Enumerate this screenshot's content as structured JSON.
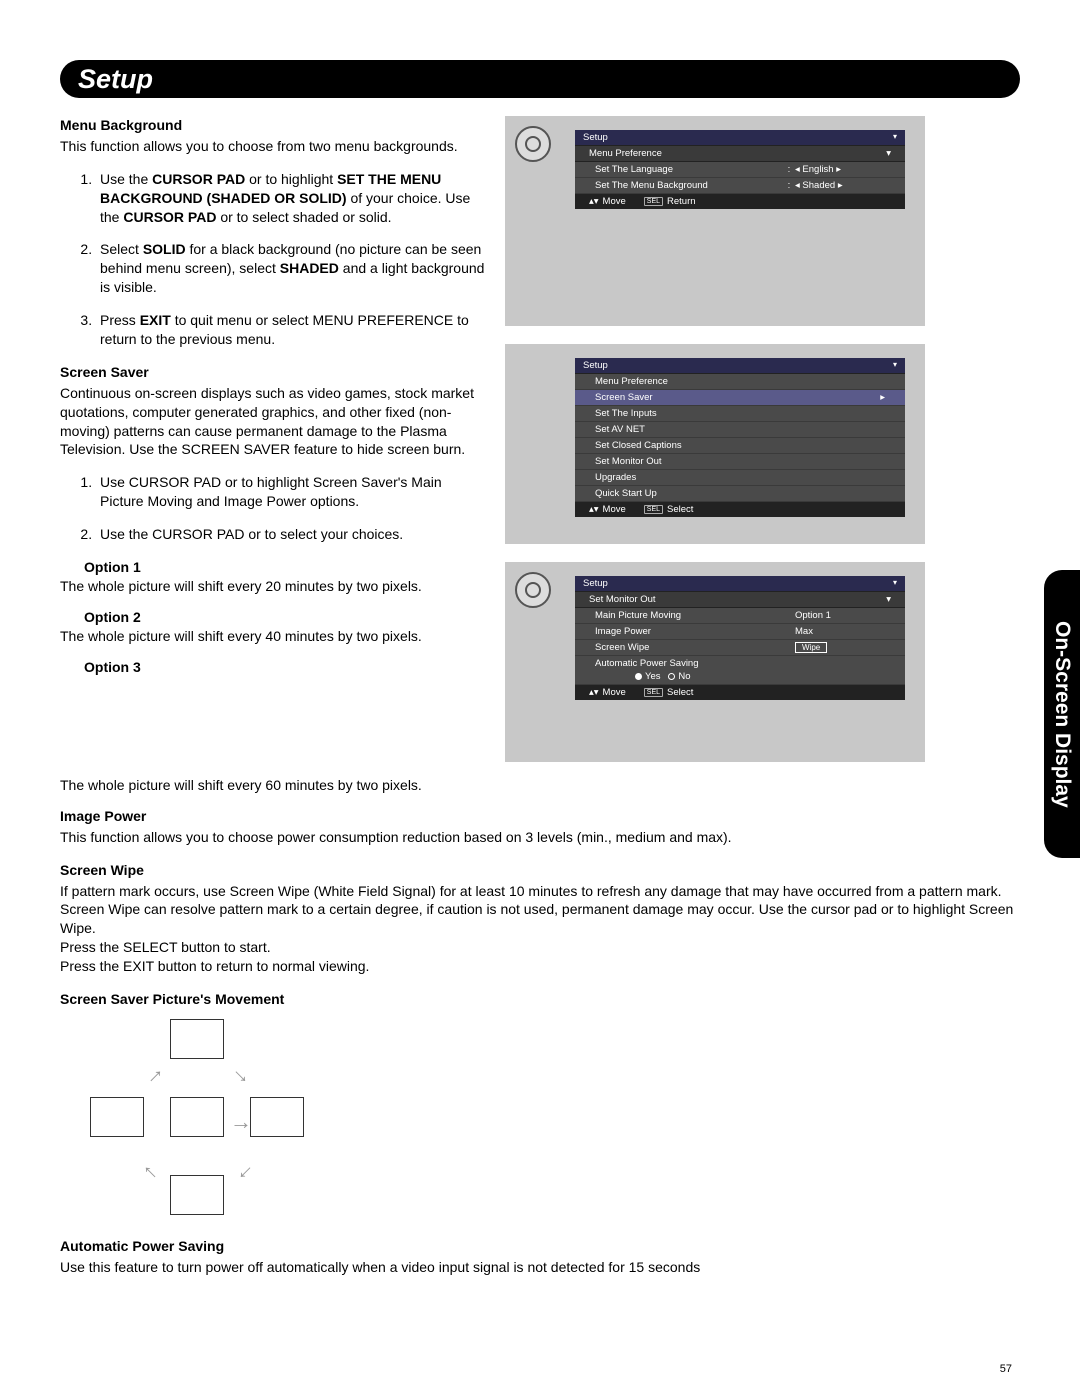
{
  "page_title": "Setup",
  "side_tab": "On-Screen Display",
  "page_number": "57",
  "menu_bg": {
    "title": "Menu Background",
    "intro": "This function allows you to choose from two menu backgrounds.",
    "steps": [
      {
        "pre": "Use the ",
        "b1": "CURSOR PAD",
        "mid": "     or     to highlight ",
        "b2": "SET THE MENU BACKGROUND (SHADED OR SOLID)",
        "mid2": " of your choice.  Use the ",
        "b3": "CURSOR PAD",
        "post": "     or     to select shaded or solid."
      },
      {
        "pre": "Select ",
        "b1": "SOLID",
        "mid": " for a black background (no picture can be seen behind menu screen), select ",
        "b2": "SHADED",
        "post": " and a light background is visible."
      },
      {
        "pre": "Press ",
        "b1": "EXIT",
        "post": " to quit menu or select MENU PREFERENCE to return to the previous menu."
      }
    ]
  },
  "screen_saver": {
    "title": "Screen Saver",
    "intro": "Continuous on-screen displays such as video games, stock market quotations, computer generated graphics, and other fixed (non-moving) patterns can cause permanent damage to the Plasma Television.  Use the SCREEN SAVER feature to hide screen burn.",
    "steps": [
      "Use CURSOR PAD     or     to highlight Screen Saver's Main Picture Moving and Image Power options.",
      "Use the CURSOR PAD     or     to select your choices."
    ],
    "options": [
      {
        "t": "Option 1",
        "b": "The whole picture will shift every 20 minutes by two pixels."
      },
      {
        "t": "Option 2",
        "b": "The whole picture will shift every 40 minutes by two pixels."
      },
      {
        "t": "Option 3",
        "b": "The whole picture will shift every 60 minutes by two pixels."
      }
    ]
  },
  "image_power": {
    "title": "Image Power",
    "body": "This function allows you to choose power consumption reduction based on 3 levels (min., medium and max)."
  },
  "screen_wipe": {
    "title": "Screen Wipe",
    "body": "If pattern mark occurs, use Screen Wipe (White Field Signal) for at least 10 minutes to refresh any damage that may have occurred from a pattern mark.  Screen Wipe can resolve pattern mark to a certain degree, if caution is not used, permanent damage may occur.  Use the cursor pad     or     to highlight Screen Wipe.",
    "l2": "Press the SELECT button to start.",
    "l3": "Press the EXIT button to return to normal viewing."
  },
  "movement_title": "Screen Saver Picture's Movement",
  "aps": {
    "title": "Automatic Power Saving",
    "body": "Use this feature to turn power off automatically when a video input signal is not detected for 15 seconds"
  },
  "osd1": {
    "header": "Setup",
    "sub": "Menu Preference",
    "rows": [
      {
        "k": "Set The Language",
        "v": "English"
      },
      {
        "k": "Set The Menu Background",
        "v": "Shaded"
      }
    ],
    "move": "Move",
    "ret": "Return",
    "sel": "SEL"
  },
  "osd2": {
    "header": "Setup",
    "items": [
      "Menu Preference",
      "Screen Saver",
      "Set The Inputs",
      "Set AV NET",
      "Set Closed Captions",
      "Set Monitor Out",
      "Upgrades",
      "Quick Start Up"
    ],
    "selected_index": 1,
    "move": "Move",
    "sel": "SEL",
    "select": "Select"
  },
  "osd3": {
    "header": "Setup",
    "sub": "Set Monitor Out",
    "rows": [
      {
        "k": "Main Picture Moving",
        "v": "Option 1"
      },
      {
        "k": "Image Power",
        "v": "Max"
      },
      {
        "k": "Screen Wipe",
        "v": "Wipe",
        "btn": true
      }
    ],
    "aps_label": "Automatic Power Saving",
    "yes": "Yes",
    "no": "No",
    "move": "Move",
    "sel": "SEL",
    "select": "Select"
  }
}
